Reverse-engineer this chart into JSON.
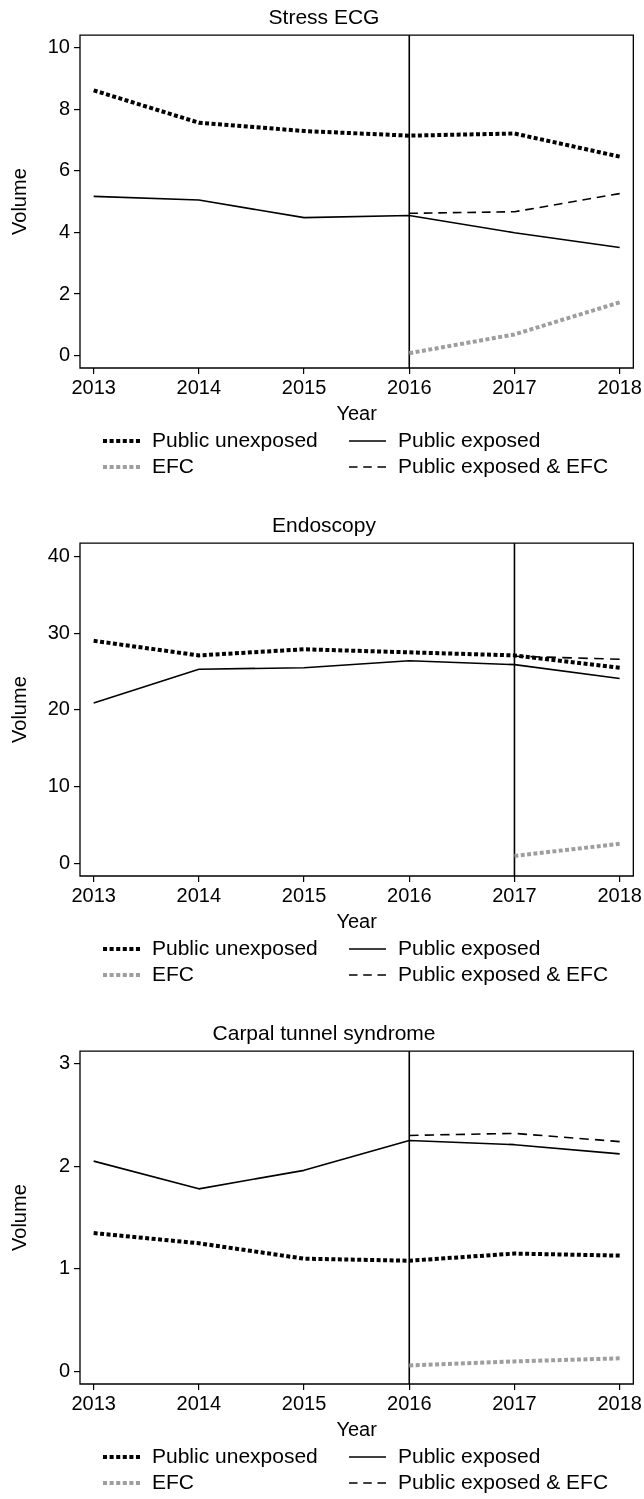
{
  "chart_data": [
    {
      "type": "line",
      "title": "Stress ECG",
      "xlabel": "Year",
      "ylabel": "Volume",
      "x": [
        2013,
        2014,
        2015,
        2016,
        2017,
        2018
      ],
      "series": [
        {
          "name": "Public unexposed",
          "color": "#000000",
          "line_style": "dotted",
          "values": [
            8.61,
            7.56,
            7.29,
            7.14,
            7.21,
            6.46
          ]
        },
        {
          "name": "Public exposed",
          "color": "#000000",
          "line_style": "solid",
          "values": [
            5.17,
            5.05,
            4.48,
            4.55,
            3.99,
            3.51
          ]
        },
        {
          "name": "EFC",
          "color": "#9e9e9e",
          "line_style": "dotted",
          "values": [
            null,
            null,
            null,
            0.08,
            0.69,
            1.73
          ]
        },
        {
          "name": "Public exposed & EFC",
          "color": "#000000",
          "line_style": "dashed",
          "values": [
            null,
            null,
            null,
            4.62,
            4.67,
            5.26
          ]
        }
      ],
      "xlim": [
        2012.87,
        2018.13
      ],
      "xticks": [
        2013,
        2014,
        2015,
        2016,
        2017,
        2018
      ],
      "ylim": [
        -0.4,
        10.4
      ],
      "yticks": [
        0,
        2,
        4,
        6,
        8,
        10
      ],
      "ref_lines": [
        {
          "axis": "x",
          "value": 2016,
          "color": "#000000"
        }
      ],
      "legend": "bottom"
    },
    {
      "type": "line",
      "title": "Endoscopy",
      "xlabel": "Year",
      "ylabel": "Volume",
      "x": [
        2013,
        2014,
        2015,
        2016,
        2017,
        2018
      ],
      "series": [
        {
          "name": "Public unexposed",
          "color": "#000000",
          "line_style": "dotted",
          "values": [
            29.0,
            27.1,
            27.9,
            27.5,
            27.1,
            25.5
          ]
        },
        {
          "name": "Public exposed",
          "color": "#000000",
          "line_style": "solid",
          "values": [
            20.9,
            25.3,
            25.5,
            26.4,
            25.9,
            24.1
          ]
        },
        {
          "name": "EFC",
          "color": "#9e9e9e",
          "line_style": "dotted",
          "values": [
            null,
            null,
            null,
            null,
            1.0,
            2.6
          ]
        },
        {
          "name": "Public exposed & EFC",
          "color": "#000000",
          "line_style": "dashed",
          "values": [
            null,
            null,
            null,
            null,
            27.0,
            26.6
          ]
        }
      ],
      "xlim": [
        2012.87,
        2018.13
      ],
      "xticks": [
        2013,
        2014,
        2015,
        2016,
        2017,
        2018
      ],
      "ylim": [
        -1.6,
        41.7
      ],
      "yticks": [
        0,
        10,
        20,
        30,
        40
      ],
      "ref_lines": [
        {
          "axis": "x",
          "value": 2017,
          "color": "#000000"
        }
      ],
      "legend": "bottom"
    },
    {
      "type": "line",
      "title": "Carpal tunnel syndrome",
      "xlabel": "Year",
      "ylabel": "Volume",
      "x": [
        2013,
        2014,
        2015,
        2016,
        2017,
        2018
      ],
      "series": [
        {
          "name": "Public unexposed",
          "color": "#000000",
          "line_style": "dotted",
          "values": [
            1.35,
            1.25,
            1.1,
            1.08,
            1.15,
            1.13
          ]
        },
        {
          "name": "Public exposed",
          "color": "#000000",
          "line_style": "solid",
          "values": [
            2.05,
            1.78,
            1.96,
            2.25,
            2.21,
            2.12
          ]
        },
        {
          "name": "EFC",
          "color": "#9e9e9e",
          "line_style": "dotted",
          "values": [
            null,
            null,
            null,
            0.06,
            0.1,
            0.13
          ]
        },
        {
          "name": "Public exposed & EFC",
          "color": "#000000",
          "line_style": "dashed",
          "values": [
            null,
            null,
            null,
            2.3,
            2.32,
            2.24
          ]
        }
      ],
      "xlim": [
        2012.87,
        2018.13
      ],
      "xticks": [
        2013,
        2014,
        2015,
        2016,
        2017,
        2018
      ],
      "ylim": [
        -0.12,
        3.12
      ],
      "yticks": [
        0,
        1,
        2,
        3
      ],
      "ref_lines": [
        {
          "axis": "x",
          "value": 2016,
          "color": "#000000"
        }
      ],
      "legend": "bottom"
    }
  ]
}
